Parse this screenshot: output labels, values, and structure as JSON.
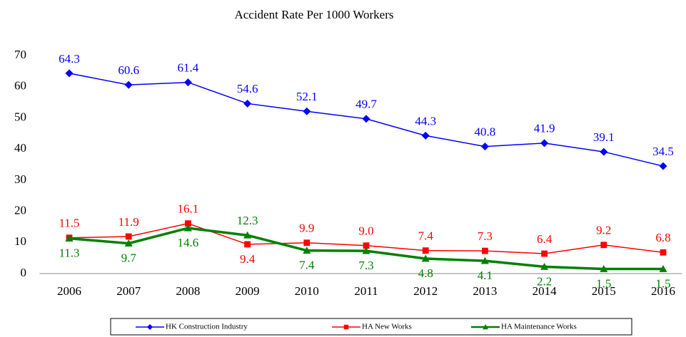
{
  "chart_data": {
    "type": "line",
    "title": "Accident Rate Per 1000 Workers",
    "categories": [
      "2006",
      "2007",
      "2008",
      "2009",
      "2010",
      "2011",
      "2012",
      "2013",
      "2014",
      "2015",
      "2016"
    ],
    "series": [
      {
        "name": "HK Construction Industry",
        "color": "#0000ff",
        "marker": "diamond",
        "values": [
          64.3,
          60.6,
          61.4,
          54.6,
          52.1,
          49.7,
          44.3,
          40.8,
          41.9,
          39.1,
          34.5
        ],
        "value_labels": [
          "64.3",
          "60.6",
          "61.4",
          "54.6",
          "52.1",
          "49.7",
          "44.3",
          "40.8",
          "41.9",
          "39.1",
          "34.5"
        ]
      },
      {
        "name": "HA New Works",
        "color": "#ff0000",
        "marker": "square",
        "values": [
          11.5,
          11.9,
          16.1,
          9.4,
          9.9,
          9.0,
          7.4,
          7.3,
          6.4,
          9.2,
          6.8
        ],
        "value_labels": [
          "11.5",
          "11.9",
          "16.1",
          "9.4",
          "9.9",
          "9.0",
          "7.4",
          "7.3",
          "6.4",
          "9.2",
          "6.8"
        ]
      },
      {
        "name": "HA Maintenance Works",
        "color": "#008000",
        "marker": "triangle",
        "values": [
          11.3,
          9.7,
          14.6,
          12.3,
          7.4,
          7.3,
          4.8,
          4.1,
          2.2,
          1.5,
          1.5
        ],
        "value_labels": [
          "11.3",
          "9.7",
          "14.6",
          "12.3",
          "7.4",
          "7.3",
          "4.8",
          "4.1",
          "2.2",
          "1.5",
          "1.5"
        ]
      }
    ],
    "ylim": [
      0,
      70
    ],
    "yticks": [
      0,
      10,
      20,
      30,
      40,
      50,
      60,
      70
    ],
    "grid": false,
    "legend": "bottom"
  }
}
